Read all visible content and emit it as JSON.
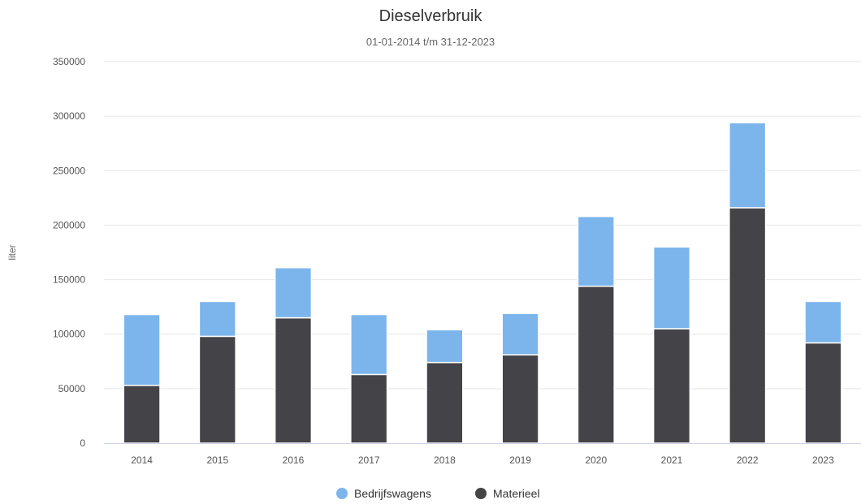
{
  "chart_data": {
    "type": "bar",
    "stacked": true,
    "title": "Dieselverbruik",
    "subtitle": "01-01-2014 t/m 31-12-2023",
    "xlabel": "",
    "ylabel": "liter",
    "ylim": [
      0,
      350000
    ],
    "yticks": [
      0,
      50000,
      100000,
      150000,
      200000,
      250000,
      300000,
      350000
    ],
    "ytick_labels": [
      "0",
      "50000",
      "100000",
      "150000",
      "200000",
      "250000",
      "300000",
      "350000"
    ],
    "categories": [
      "2014",
      "2015",
      "2016",
      "2017",
      "2018",
      "2019",
      "2020",
      "2021",
      "2022",
      "2023"
    ],
    "series": [
      {
        "name": "Materieel",
        "color": "#434348",
        "values": [
          53000,
          98000,
          115000,
          63000,
          74000,
          81000,
          144000,
          105000,
          216000,
          92000
        ]
      },
      {
        "name": "Bedrijfswagens",
        "color": "#7cb5ec",
        "values": [
          65000,
          32000,
          46000,
          55000,
          30000,
          38000,
          64000,
          75000,
          78000,
          38000
        ]
      }
    ],
    "legend": {
      "position": "bottom-center",
      "items": [
        "Bedrijfswagens",
        "Materieel"
      ]
    },
    "grid": true
  }
}
